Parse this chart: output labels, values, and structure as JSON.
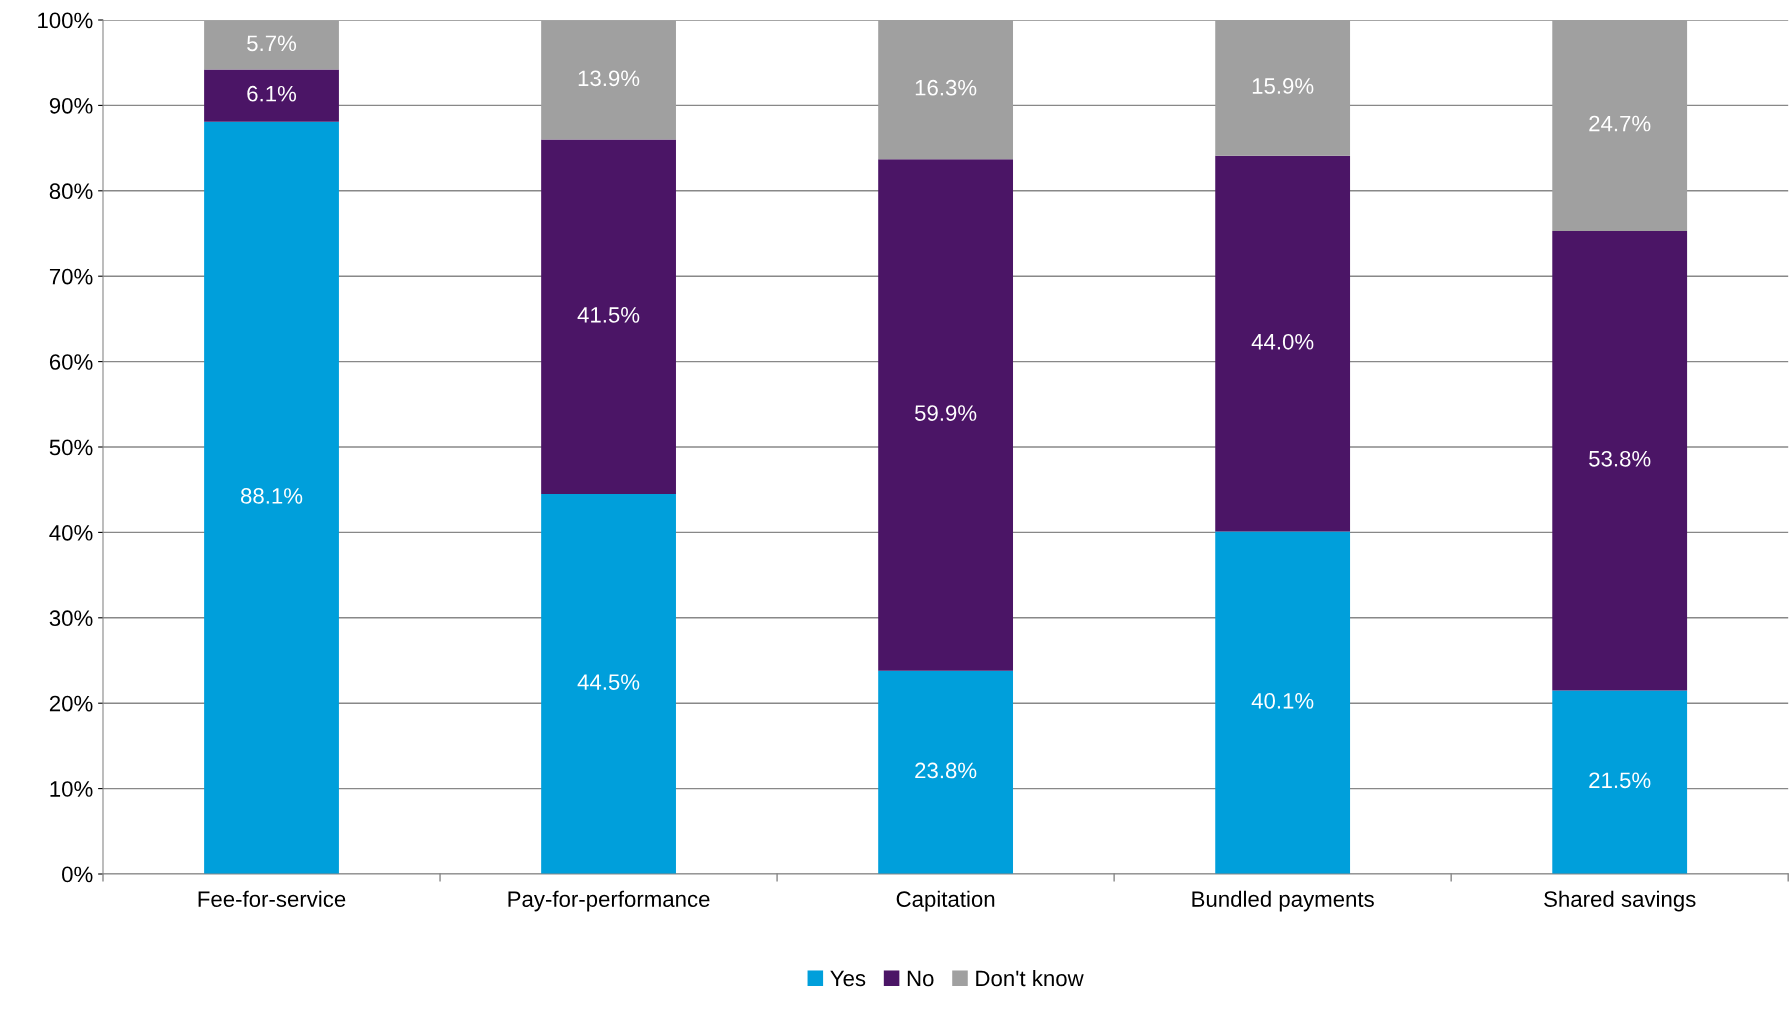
{
  "chart_data": {
    "type": "bar",
    "stacked": true,
    "categories": [
      "Fee-for-service",
      "Pay-for-performance",
      "Capitation",
      "Bundled payments",
      "Shared savings"
    ],
    "series": [
      {
        "name": "Yes",
        "color": "#009fdb",
        "values": [
          88.1,
          44.5,
          23.8,
          40.1,
          21.5
        ],
        "value_labels": [
          "88.1%",
          "44.5%",
          "23.8%",
          "40.1%",
          "21.5%"
        ]
      },
      {
        "name": "No",
        "color": "#4b1566",
        "values": [
          6.1,
          41.5,
          59.9,
          44.0,
          53.8
        ],
        "value_labels": [
          "6.1%",
          "41.5%",
          "59.9%",
          "44.0%",
          "53.8%"
        ]
      },
      {
        "name": "Don't know",
        "color": "#a0a0a0",
        "values": [
          5.7,
          13.9,
          16.3,
          15.9,
          24.7
        ],
        "value_labels": [
          "5.7%",
          "13.9%",
          "16.3%",
          "15.9%",
          "24.7%"
        ]
      }
    ],
    "ylim": [
      0,
      100
    ],
    "yticks": [
      {
        "value": 0,
        "label": "0%"
      },
      {
        "value": 10,
        "label": "10%"
      },
      {
        "value": 20,
        "label": "20%"
      },
      {
        "value": 30,
        "label": "30%"
      },
      {
        "value": 40,
        "label": "40%"
      },
      {
        "value": 50,
        "label": "50%"
      },
      {
        "value": 60,
        "label": "60%"
      },
      {
        "value": 70,
        "label": "70%"
      },
      {
        "value": 80,
        "label": "80%"
      },
      {
        "value": 90,
        "label": "90%"
      },
      {
        "value": 100,
        "label": "100%"
      }
    ],
    "grid": "y",
    "legend": "bottom"
  }
}
